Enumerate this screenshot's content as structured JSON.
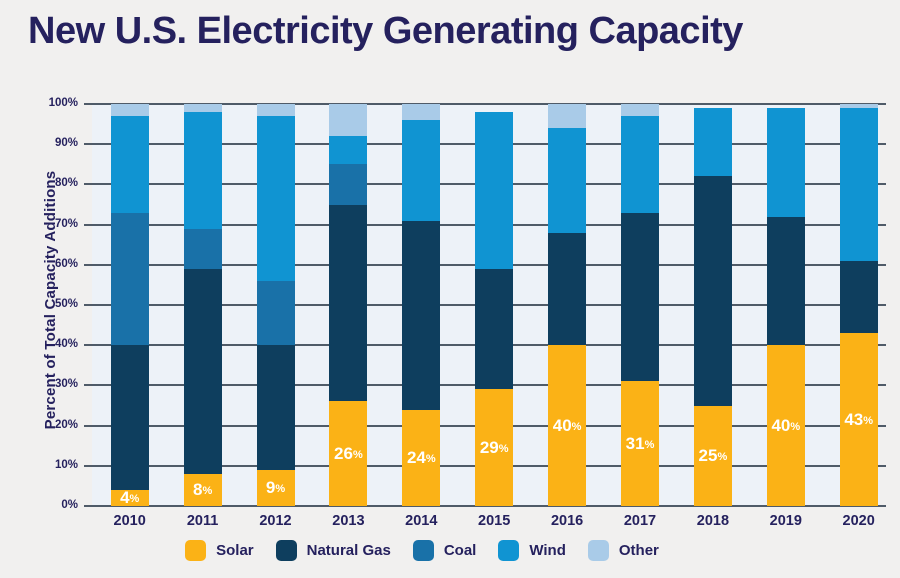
{
  "page": {
    "title": "New U.S. Electricity Generating Capacity"
  },
  "chart_data": {
    "type": "bar",
    "stacked": true,
    "title": "New U.S. Electricity Generating Capacity",
    "ylabel": "Percent of Total Capacity Additions",
    "xlabel": "",
    "ylim": [
      0,
      100
    ],
    "grid": true,
    "legend_position": "bottom",
    "ytick_labels": [
      "0%",
      "10%",
      "20%",
      "30%",
      "40%",
      "50%",
      "60%",
      "70%",
      "80%",
      "90%",
      "100%"
    ],
    "categories": [
      "2010",
      "2011",
      "2012",
      "2013",
      "2014",
      "2015",
      "2016",
      "2017",
      "2018",
      "2019",
      "2020"
    ],
    "series": [
      {
        "name": "Solar",
        "color": "#FBB216",
        "values": [
          4,
          8,
          9,
          26,
          24,
          29,
          40,
          31,
          25,
          40,
          43
        ],
        "bar_labels": [
          "4%",
          "8%",
          "9%",
          "26%",
          "24%",
          "29%",
          "40%",
          "31%",
          "25%",
          "40%",
          "43%"
        ]
      },
      {
        "name": "Natural Gas",
        "color": "#0E3E5E",
        "values": [
          36,
          51,
          31,
          49,
          47,
          30,
          28,
          42,
          57,
          32,
          18
        ]
      },
      {
        "name": "Coal",
        "color": "#1971A8",
        "values": [
          33,
          10,
          16,
          10,
          0,
          0,
          0,
          0,
          0,
          0,
          0
        ]
      },
      {
        "name": "Wind",
        "color": "#1094D2",
        "values": [
          24,
          29,
          41,
          7,
          25,
          39,
          26,
          24,
          17,
          27,
          38
        ]
      },
      {
        "name": "Other",
        "color": "#A9CBE8",
        "values": [
          3,
          2,
          3,
          8,
          4,
          0,
          6,
          3,
          0,
          0,
          1
        ]
      }
    ]
  },
  "colors": {
    "page_bg": "#F1F0EF",
    "plot_bg": "#EDF2F8",
    "gridline": "#4F5B68",
    "text_navy": "#25215E",
    "bar_value_label": "#FFFFFF"
  }
}
